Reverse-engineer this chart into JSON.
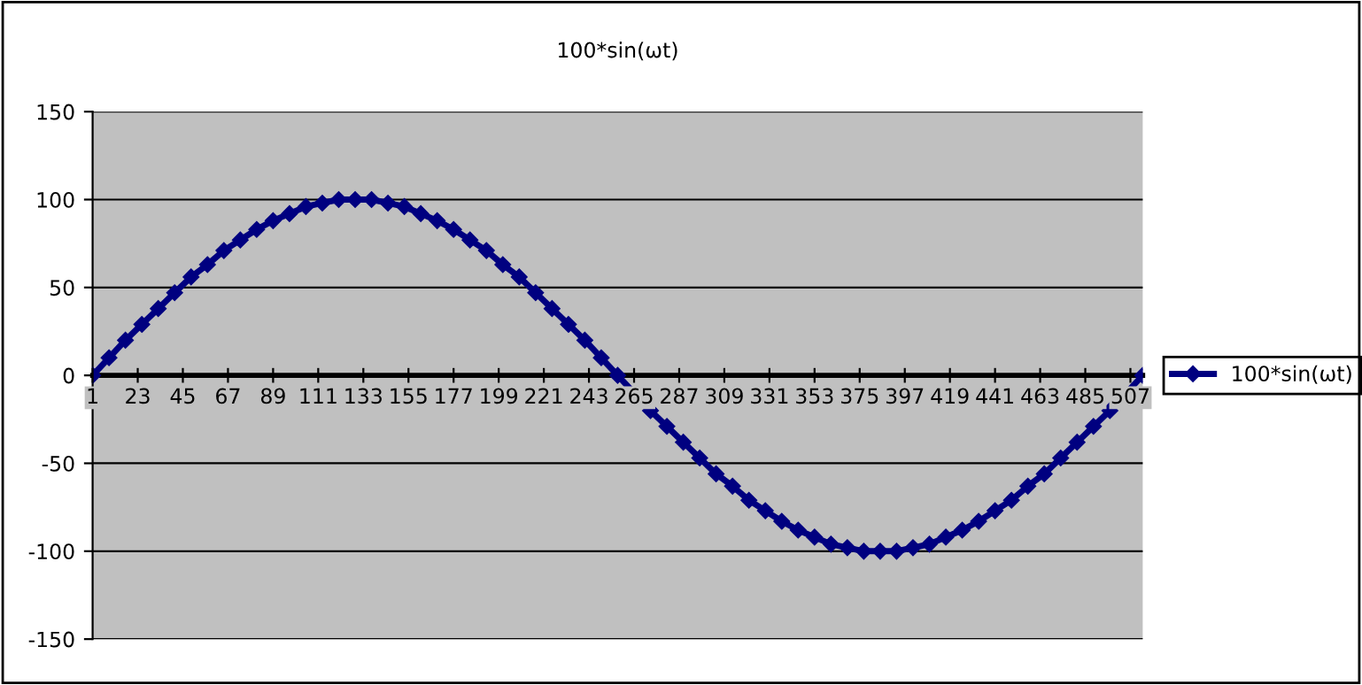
{
  "chart_data": {
    "type": "line",
    "title": "100*sin(ωt)",
    "x": [
      1,
      9,
      17,
      25,
      33,
      41,
      49,
      57,
      65,
      73,
      81,
      89,
      97,
      105,
      113,
      121,
      129,
      137,
      145,
      153,
      161,
      169,
      177,
      185,
      193,
      201,
      209,
      217,
      225,
      233,
      241,
      249,
      257,
      273,
      281,
      289,
      297,
      305,
      313,
      321,
      329,
      337,
      345,
      353,
      361,
      369,
      377,
      385,
      393,
      401,
      409,
      417,
      425,
      433,
      441,
      449,
      457,
      465,
      473,
      481,
      489,
      497,
      513
    ],
    "series": [
      {
        "name": "100*sin(ωt)",
        "color": "#000080",
        "values": [
          0,
          10,
          20,
          29,
          38,
          47,
          56,
          63,
          71,
          77,
          83,
          88,
          92,
          96,
          98,
          100,
          100,
          100,
          98,
          96,
          92,
          88,
          83,
          77,
          71,
          63,
          56,
          47,
          38,
          29,
          20,
          10,
          0,
          -20,
          -29,
          -38,
          -47,
          -56,
          -63,
          -71,
          -77,
          -83,
          -88,
          -92,
          -96,
          -98,
          -100,
          -100,
          -100,
          -98,
          -96,
          -92,
          -88,
          -83,
          -77,
          -71,
          -63,
          -56,
          -47,
          -38,
          -29,
          -20,
          0
        ]
      }
    ],
    "xlim": [
      1,
      513
    ],
    "xticks": [
      1,
      23,
      45,
      67,
      89,
      111,
      133,
      155,
      177,
      199,
      221,
      243,
      265,
      287,
      309,
      331,
      353,
      375,
      397,
      419,
      441,
      463,
      485,
      507
    ],
    "ylim": [
      -150,
      150
    ],
    "yticks": [
      -150,
      -100,
      -50,
      0,
      50,
      100,
      150
    ],
    "grid": "y",
    "legend": "right",
    "marker": "diamond",
    "line_style": "solid"
  }
}
